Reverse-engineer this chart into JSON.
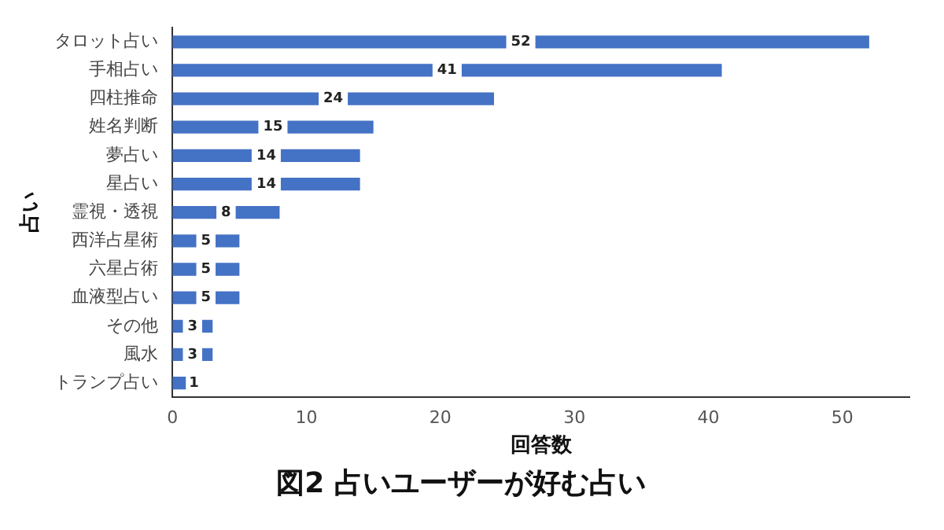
{
  "chart_data": {
    "type": "bar",
    "orientation": "horizontal",
    "title": "図2 占いユーザーが好む占い",
    "xlabel": "回答数",
    "ylabel": "占い",
    "categories": [
      "タロット占い",
      "手相占い",
      "四柱推命",
      "姓名判断",
      "夢占い",
      "星占い",
      "霊視・透視",
      "西洋占星術",
      "六星占術",
      "血液型占い",
      "その他",
      "風水",
      "トランプ占い"
    ],
    "values": [
      52,
      41,
      24,
      15,
      14,
      14,
      8,
      5,
      5,
      5,
      3,
      3,
      1
    ],
    "color": "#4472c4",
    "data_labels": true,
    "xlim": [
      0,
      55
    ],
    "xticks": [
      0,
      10,
      20,
      30,
      40,
      50
    ],
    "grid": false,
    "legend": false
  }
}
